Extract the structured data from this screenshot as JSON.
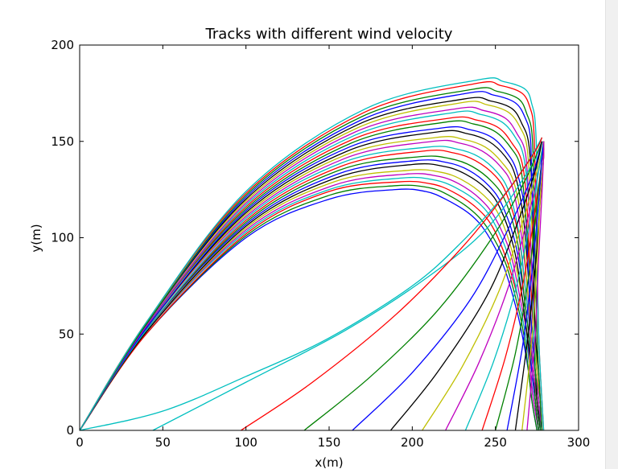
{
  "chart_data": {
    "type": "line",
    "title": "Tracks with different wind velocity",
    "xlabel": "x(m)",
    "ylabel": "y(m)",
    "xlim": [
      0,
      300
    ],
    "ylim": [
      0,
      200
    ],
    "xticks": [
      "0",
      "50",
      "100",
      "150",
      "200",
      "250",
      "300"
    ],
    "yticks": [
      "0",
      "50",
      "100",
      "150",
      "200"
    ],
    "grid": false,
    "legend": "none",
    "color_cycle": [
      "#0000ff",
      "#008000",
      "#ff0000",
      "#00bfbf",
      "#bf00bf",
      "#bfbf00",
      "#000000"
    ],
    "series": [
      {
        "color": "#0000ff",
        "x": [
          0,
          40,
          100,
          150,
          190,
          208,
          220,
          235,
          245,
          255,
          262,
          266,
          270,
          272,
          275
        ],
        "y": [
          0,
          50,
          100,
          120,
          125,
          124,
          120,
          112,
          102,
          85,
          65,
          50,
          30,
          15,
          0
        ]
      },
      {
        "color": "#008000",
        "x": [
          0,
          40,
          100,
          150,
          190,
          210,
          222,
          236,
          246,
          256,
          263,
          267,
          270,
          272,
          275
        ],
        "y": [
          0,
          50,
          101,
          122,
          127,
          126,
          122,
          114,
          104,
          87,
          66,
          50,
          30,
          15,
          0
        ]
      },
      {
        "color": "#ff0000",
        "x": [
          0,
          40,
          100,
          150,
          192,
          211,
          224,
          238,
          248,
          257,
          264,
          268,
          271,
          273,
          276
        ],
        "y": [
          0,
          50,
          102,
          124,
          129,
          128,
          124,
          116,
          106,
          88,
          67,
          50,
          30,
          15,
          0
        ]
      },
      {
        "color": "#00bfbf",
        "x": [
          0,
          40,
          100,
          150,
          194,
          213,
          226,
          240,
          249,
          258,
          264,
          268,
          271,
          273,
          276
        ],
        "y": [
          0,
          51,
          103,
          125,
          131,
          130,
          126,
          118,
          108,
          90,
          67,
          50,
          30,
          15,
          0
        ]
      },
      {
        "color": "#bf00bf",
        "x": [
          0,
          40,
          100,
          152,
          196,
          215,
          228,
          241,
          250,
          259,
          265,
          269,
          271,
          273,
          276
        ],
        "y": [
          0,
          51,
          104,
          127,
          133,
          132,
          128,
          120,
          110,
          92,
          68,
          50,
          30,
          15,
          0
        ]
      },
      {
        "color": "#bfbf00",
        "x": [
          0,
          40,
          100,
          153,
          198,
          217,
          230,
          243,
          252,
          260,
          266,
          269,
          272,
          274,
          276
        ],
        "y": [
          0,
          51,
          105,
          129,
          135,
          134,
          130,
          122,
          112,
          93,
          69,
          50,
          30,
          15,
          0
        ]
      },
      {
        "color": "#000000",
        "x": [
          0,
          40,
          100,
          154,
          200,
          219,
          232,
          245,
          253,
          261,
          266,
          269,
          272,
          274,
          276
        ],
        "y": [
          0,
          51,
          106,
          131,
          138,
          137,
          133,
          125,
          115,
          95,
          70,
          50,
          30,
          15,
          0
        ]
      },
      {
        "color": "#0000ff",
        "x": [
          0,
          40,
          100,
          155,
          202,
          221,
          234,
          246,
          254,
          262,
          267,
          270,
          272,
          274,
          276
        ],
        "y": [
          0,
          52,
          107,
          133,
          140,
          139,
          135,
          127,
          117,
          97,
          71,
          50,
          30,
          15,
          0
        ]
      },
      {
        "color": "#008000",
        "x": [
          0,
          40,
          100,
          156,
          204,
          223,
          236,
          248,
          256,
          263,
          267,
          270,
          273,
          274,
          276
        ],
        "y": [
          0,
          52,
          108,
          135,
          142,
          141,
          137,
          129,
          119,
          99,
          72,
          50,
          30,
          15,
          0
        ]
      },
      {
        "color": "#ff0000",
        "x": [
          0,
          40,
          100,
          157,
          207,
          225,
          238,
          250,
          257,
          264,
          268,
          271,
          273,
          275,
          277
        ],
        "y": [
          0,
          52,
          109,
          137,
          145,
          144,
          140,
          132,
          122,
          101,
          73,
          50,
          30,
          15,
          0
        ]
      },
      {
        "color": "#00bfbf",
        "x": [
          0,
          40,
          100,
          158,
          209,
          227,
          240,
          251,
          258,
          264,
          268,
          271,
          273,
          275,
          277
        ],
        "y": [
          0,
          52,
          110,
          139,
          147,
          146,
          142,
          134,
          124,
          103,
          74,
          50,
          30,
          15,
          0
        ]
      },
      {
        "color": "#bf00bf",
        "x": [
          0,
          40,
          100,
          159,
          212,
          229,
          242,
          253,
          260,
          265,
          269,
          271,
          273,
          275,
          277
        ],
        "y": [
          0,
          53,
          111,
          141,
          150,
          149,
          145,
          137,
          127,
          105,
          75,
          50,
          30,
          15,
          0
        ]
      },
      {
        "color": "#bfbf00",
        "x": [
          0,
          40,
          100,
          160,
          214,
          231,
          244,
          254,
          261,
          266,
          269,
          272,
          274,
          275,
          277
        ],
        "y": [
          0,
          53,
          112,
          143,
          152,
          151,
          147,
          139,
          129,
          107,
          76,
          50,
          30,
          15,
          0
        ]
      },
      {
        "color": "#000000",
        "x": [
          0,
          40,
          100,
          161,
          216,
          233,
          246,
          256,
          262,
          267,
          270,
          272,
          274,
          275,
          277
        ],
        "y": [
          0,
          53,
          113,
          145,
          155,
          154,
          150,
          142,
          132,
          109,
          77,
          50,
          30,
          15,
          0
        ]
      },
      {
        "color": "#0000ff",
        "x": [
          0,
          40,
          100,
          162,
          218,
          235,
          248,
          257,
          263,
          268,
          270,
          272,
          274,
          276,
          277
        ],
        "y": [
          0,
          53,
          114,
          147,
          157,
          156,
          152,
          144,
          134,
          112,
          78,
          50,
          30,
          15,
          0
        ]
      },
      {
        "color": "#008000",
        "x": [
          0,
          40,
          100,
          163,
          220,
          237,
          250,
          259,
          265,
          268,
          271,
          273,
          274,
          276,
          277
        ],
        "y": [
          0,
          54,
          115,
          149,
          160,
          159,
          155,
          147,
          137,
          114,
          79,
          50,
          30,
          15,
          0
        ]
      },
      {
        "color": "#ff0000",
        "x": [
          0,
          40,
          100,
          164,
          222,
          239,
          252,
          260,
          266,
          269,
          271,
          273,
          275,
          276,
          278
        ],
        "y": [
          0,
          54,
          116,
          151,
          162,
          161,
          157,
          149,
          139,
          116,
          80,
          50,
          30,
          15,
          0
        ]
      },
      {
        "color": "#00bfbf",
        "x": [
          0,
          40,
          100,
          165,
          225,
          241,
          254,
          262,
          267,
          270,
          272,
          273,
          275,
          276,
          278
        ],
        "y": [
          0,
          54,
          117,
          153,
          165,
          164,
          160,
          152,
          142,
          118,
          81,
          50,
          30,
          15,
          0
        ]
      },
      {
        "color": "#bf00bf",
        "x": [
          0,
          40,
          100,
          166,
          227,
          243,
          256,
          263,
          268,
          270,
          272,
          274,
          275,
          276,
          278
        ],
        "y": [
          0,
          54,
          118,
          155,
          167,
          166,
          162,
          154,
          144,
          120,
          82,
          50,
          30,
          15,
          0
        ]
      },
      {
        "color": "#bfbf00",
        "x": [
          0,
          40,
          100,
          167,
          229,
          245,
          258,
          265,
          269,
          271,
          273,
          274,
          275,
          277,
          278
        ],
        "y": [
          0,
          55,
          119,
          157,
          170,
          169,
          165,
          157,
          147,
          122,
          83,
          50,
          30,
          15,
          0
        ]
      },
      {
        "color": "#000000",
        "x": [
          0,
          40,
          100,
          168,
          231,
          247,
          260,
          266,
          270,
          272,
          273,
          274,
          276,
          277,
          278
        ],
        "y": [
          0,
          55,
          120,
          159,
          172,
          171,
          167,
          159,
          149,
          124,
          84,
          50,
          30,
          15,
          0
        ]
      },
      {
        "color": "#0000ff",
        "x": [
          0,
          40,
          100,
          169,
          233,
          249,
          262,
          268,
          271,
          272,
          274,
          275,
          276,
          277,
          278
        ],
        "y": [
          0,
          55,
          121,
          161,
          175,
          174,
          170,
          162,
          152,
          126,
          85,
          50,
          30,
          15,
          0
        ]
      },
      {
        "color": "#008000",
        "x": [
          0,
          40,
          100,
          170,
          236,
          251,
          264,
          269,
          272,
          273,
          274,
          275,
          276,
          277,
          278
        ],
        "y": [
          0,
          55,
          122,
          163,
          177,
          176,
          172,
          164,
          154,
          128,
          86,
          50,
          30,
          15,
          0
        ]
      },
      {
        "color": "#ff0000",
        "x": [
          0,
          40,
          100,
          171,
          238,
          253,
          266,
          271,
          273,
          274,
          275,
          276,
          277,
          278,
          279
        ],
        "y": [
          0,
          56,
          123,
          165,
          180,
          179,
          175,
          167,
          157,
          130,
          87,
          50,
          30,
          15,
          0
        ]
      },
      {
        "color": "#00bfbf",
        "x": [
          0,
          40,
          100,
          172,
          240,
          255,
          268,
          272,
          274,
          275,
          275,
          276,
          277,
          278,
          279
        ],
        "y": [
          0,
          56,
          124,
          167,
          182,
          181,
          177,
          169,
          159,
          132,
          88,
          50,
          30,
          15,
          0
        ]
      },
      {
        "color": "#00bfbf",
        "x": [
          0,
          50,
          100,
          150,
          200,
          230,
          255,
          270,
          278
        ],
        "y": [
          0,
          10,
          28,
          48,
          75,
          98,
          122,
          140,
          152
        ]
      },
      {
        "color": "#00bfbf",
        "x": [
          44,
          100,
          160,
          210,
          245,
          270,
          278
        ],
        "y": [
          0,
          25,
          52,
          80,
          105,
          135,
          150
        ]
      },
      {
        "color": "#ff0000",
        "x": [
          97,
          140,
          190,
          230,
          258,
          274,
          278
        ],
        "y": [
          0,
          25,
          60,
          95,
          125,
          145,
          152
        ]
      },
      {
        "color": "#008000",
        "x": [
          135,
          175,
          215,
          248,
          268,
          278
        ],
        "y": [
          0,
          28,
          62,
          100,
          130,
          150
        ]
      },
      {
        "color": "#0000ff",
        "x": [
          164,
          200,
          235,
          258,
          272,
          278
        ],
        "y": [
          0,
          30,
          68,
          105,
          132,
          150
        ]
      },
      {
        "color": "#000000",
        "x": [
          187,
          215,
          245,
          263,
          274,
          278
        ],
        "y": [
          0,
          30,
          70,
          107,
          135,
          150
        ]
      },
      {
        "color": "#bfbf00",
        "x": [
          206,
          230,
          252,
          267,
          276,
          279
        ],
        "y": [
          0,
          33,
          72,
          110,
          138,
          150
        ]
      },
      {
        "color": "#bf00bf",
        "x": [
          220,
          240,
          258,
          270,
          277,
          279
        ],
        "y": [
          0,
          35,
          75,
          112,
          139,
          150
        ]
      },
      {
        "color": "#00bfbf",
        "x": [
          232,
          249,
          263,
          272,
          277,
          279
        ],
        "y": [
          0,
          36,
          76,
          114,
          140,
          150
        ]
      },
      {
        "color": "#ff0000",
        "x": [
          242,
          256,
          267,
          274,
          278,
          279
        ],
        "y": [
          0,
          38,
          78,
          115,
          140,
          150
        ]
      },
      {
        "color": "#008000",
        "x": [
          250,
          262,
          270,
          275,
          278,
          279
        ],
        "y": [
          0,
          40,
          80,
          117,
          141,
          150
        ]
      },
      {
        "color": "#0000ff",
        "x": [
          257,
          266,
          272,
          276,
          278,
          279
        ],
        "y": [
          0,
          42,
          82,
          118,
          141,
          150
        ]
      },
      {
        "color": "#000000",
        "x": [
          262,
          269,
          274,
          277,
          279,
          279
        ],
        "y": [
          0,
          45,
          85,
          120,
          142,
          150
        ]
      },
      {
        "color": "#bfbf00",
        "x": [
          266,
          272,
          275,
          277,
          279,
          279
        ],
        "y": [
          0,
          48,
          87,
          121,
          142,
          150
        ]
      },
      {
        "color": "#bf00bf",
        "x": [
          269,
          274,
          276,
          278,
          279,
          279
        ],
        "y": [
          0,
          50,
          90,
          123,
          143,
          150
        ]
      }
    ]
  }
}
